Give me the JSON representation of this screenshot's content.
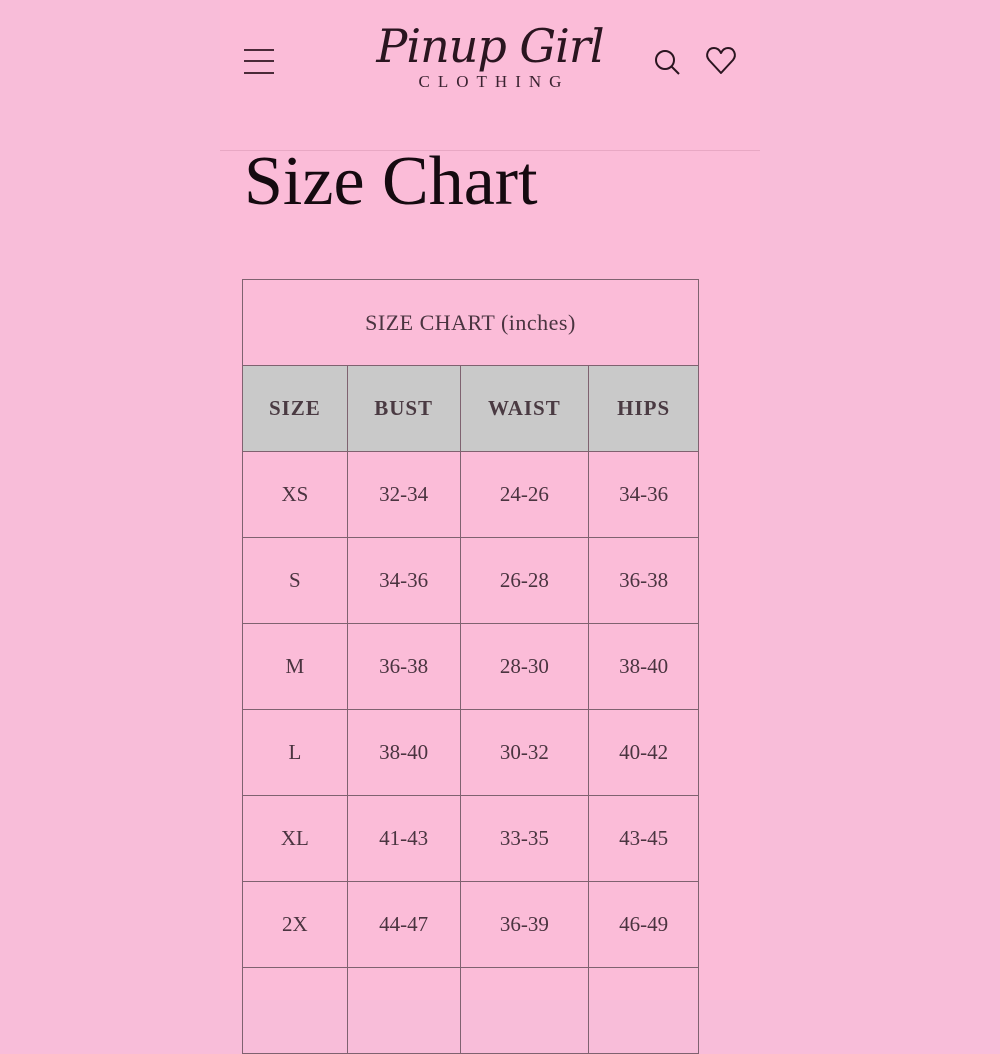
{
  "header": {
    "logo_main": "Pinup Girl",
    "logo_sub": "CLOTHING",
    "icons": [
      "menu-icon",
      "search-icon",
      "heart-icon"
    ]
  },
  "page_title": "Size Chart",
  "size_table": {
    "caption": "SIZE CHART (inches)",
    "columns": [
      "SIZE",
      "BUST",
      "WAIST",
      "HIPS"
    ],
    "rows": [
      [
        "XS",
        "32-34",
        "24-26",
        "34-36"
      ],
      [
        "S",
        "34-36",
        "26-28",
        "36-38"
      ],
      [
        "M",
        "36-38",
        "28-30",
        "38-40"
      ],
      [
        "L",
        "38-40",
        "30-32",
        "40-42"
      ],
      [
        "XL",
        "41-43",
        "33-35",
        "43-45"
      ],
      [
        "2X",
        "44-47",
        "36-39",
        "46-49"
      ]
    ],
    "header_bg": "#c9c9c9"
  },
  "colors": {
    "background": "#fbbcd8",
    "text": "#2a1520"
  }
}
